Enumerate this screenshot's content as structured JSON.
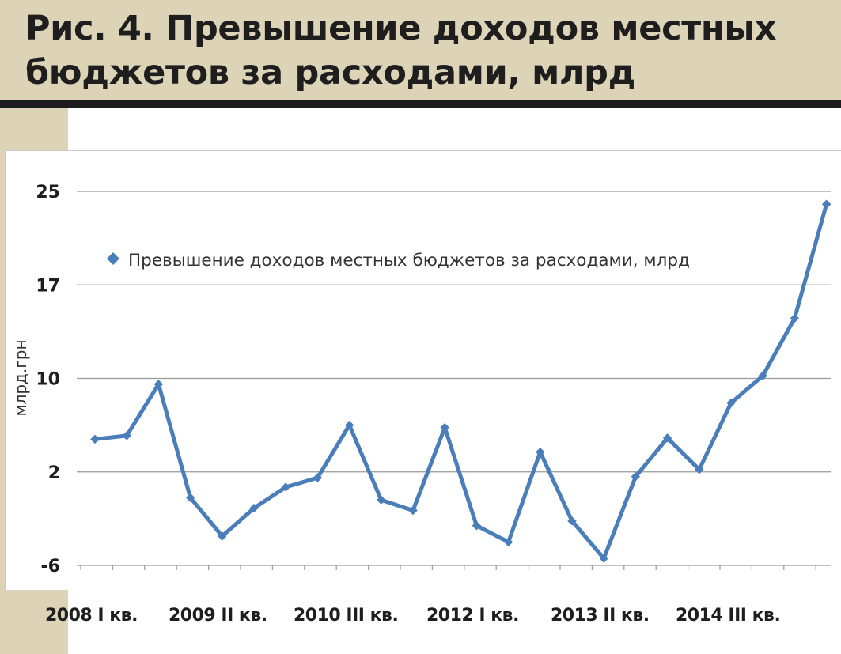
{
  "header": {
    "title_line1": "Рис. 4. Превышение доходов местных",
    "title_line2": "бюджетов за расходами, млрд"
  },
  "colors": {
    "header_bg": "#ddd3b6",
    "rule": "#1c1c1c",
    "series": "#4a7ebb",
    "grid": "#9a9a9a"
  },
  "chart_data": {
    "type": "line",
    "ylabel": "млрд.грн",
    "y_ticks": [
      "-6",
      "2",
      "10",
      "17",
      "25"
    ],
    "y_tick_values": [
      -6,
      2,
      10,
      17,
      25
    ],
    "ylim": [
      -6,
      25
    ],
    "grid": "horizontal",
    "legend_position": "top-left",
    "x_tick_labels": [
      "2008 I кв.",
      "2009 II кв.",
      "2010 III кв.",
      "2012 I кв.",
      "2013 II кв.",
      "2014 III кв."
    ],
    "x_tick_label_index": [
      0,
      5,
      10,
      15,
      20,
      25
    ],
    "series": [
      {
        "name": "Превышение доходов местных бюджетов за расходами, млрд",
        "values": [
          4.8,
          5.1,
          9.5,
          -0.2,
          -3.5,
          -1.1,
          0.7,
          1.5,
          6.0,
          -0.4,
          -1.3,
          5.8,
          -2.6,
          -4.0,
          3.7,
          -2.2,
          -5.4,
          1.6,
          4.9,
          2.2,
          7.9,
          10.2,
          14.5,
          23.9
        ]
      }
    ]
  }
}
